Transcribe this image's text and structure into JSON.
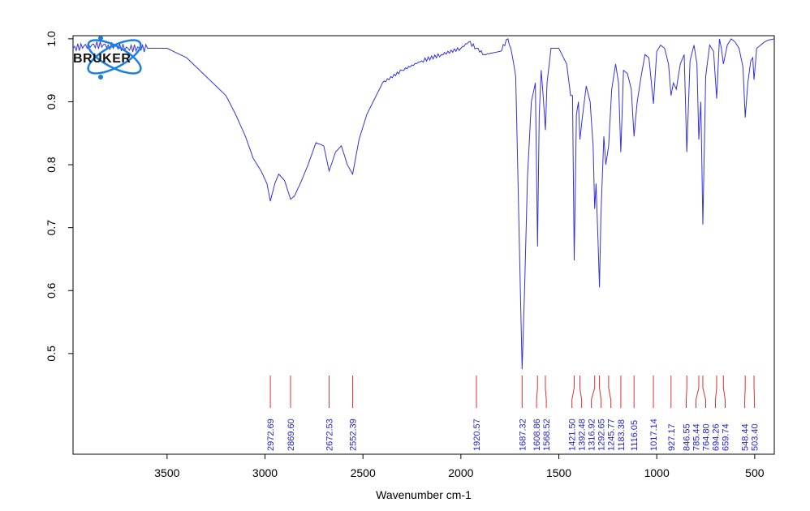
{
  "chart_data": {
    "type": "line",
    "xlabel": "Wavenumber cm-1",
    "ylabel": "",
    "xlim": [
      3980,
      400
    ],
    "ylim": [
      0.34,
      1.005
    ],
    "x_reversed": true,
    "x_ticks": [
      3500,
      3000,
      2500,
      2000,
      1500,
      1000,
      500
    ],
    "y_ticks": [
      0.5,
      0.6,
      0.7,
      0.8,
      0.9,
      1.0
    ],
    "y_tick_labels": [
      "0.5",
      "0.6",
      "0.7",
      "0.8",
      "0.9",
      "1.0"
    ],
    "series": [
      {
        "color": "#3333dd",
        "x": [
          3980,
          3900,
          3800,
          3700,
          3600,
          3500,
          3400,
          3300,
          3200,
          3150,
          3100,
          3060,
          3020,
          2990,
          2972.69,
          2950,
          2930,
          2900,
          2869.6,
          2850,
          2820,
          2780,
          2740,
          2700,
          2672.53,
          2640,
          2610,
          2580,
          2552.39,
          2520,
          2480,
          2400,
          2300,
          2200,
          2100,
          2000,
          1960,
          1920.57,
          1880,
          1800,
          1760,
          1745,
          1730,
          1720,
          1710,
          1700,
          1687.32,
          1675,
          1660,
          1640,
          1620,
          1608.86,
          1600,
          1590,
          1580,
          1568.52,
          1560,
          1540,
          1500,
          1460,
          1440,
          1430,
          1421.5,
          1410,
          1400,
          1392.48,
          1380,
          1360,
          1340,
          1325,
          1316.92,
          1310,
          1300,
          1292.65,
          1285,
          1270,
          1260,
          1245.77,
          1230,
          1210,
          1195,
          1183.38,
          1170,
          1150,
          1130,
          1116.05,
          1100,
          1080,
          1060,
          1040,
          1017.14,
          1000,
          980,
          960,
          940,
          927.17,
          915,
          900,
          880,
          860,
          846.55,
          830,
          810,
          795,
          785.44,
          775,
          764.8,
          750,
          730,
          710,
          694.26,
          680,
          670,
          659.74,
          640,
          620,
          600,
          580,
          560,
          548.44,
          535,
          520,
          510,
          503.4,
          490,
          470,
          450,
          430,
          400
        ],
        "y": [
          0.985,
          0.99,
          0.99,
          0.985,
          0.985,
          0.985,
          0.97,
          0.94,
          0.91,
          0.88,
          0.845,
          0.81,
          0.79,
          0.77,
          0.742,
          0.77,
          0.785,
          0.775,
          0.745,
          0.75,
          0.77,
          0.8,
          0.835,
          0.83,
          0.79,
          0.82,
          0.83,
          0.8,
          0.785,
          0.84,
          0.88,
          0.93,
          0.95,
          0.965,
          0.975,
          0.985,
          0.995,
          0.985,
          0.975,
          0.98,
          1.0,
          0.985,
          0.96,
          0.94,
          0.8,
          0.65,
          0.475,
          0.6,
          0.78,
          0.9,
          0.93,
          0.67,
          0.88,
          0.95,
          0.91,
          0.855,
          0.93,
          0.985,
          0.985,
          0.96,
          0.91,
          0.91,
          0.648,
          0.88,
          0.9,
          0.84,
          0.875,
          0.925,
          0.9,
          0.83,
          0.73,
          0.77,
          0.68,
          0.605,
          0.72,
          0.845,
          0.8,
          0.83,
          0.92,
          0.96,
          0.93,
          0.82,
          0.95,
          0.945,
          0.92,
          0.845,
          0.9,
          0.94,
          0.975,
          0.97,
          0.897,
          0.98,
          0.99,
          0.985,
          0.96,
          0.91,
          0.93,
          0.92,
          0.96,
          0.975,
          0.82,
          0.965,
          0.99,
          0.96,
          0.84,
          0.9,
          0.705,
          0.94,
          0.99,
          0.98,
          0.905,
          1.0,
          0.985,
          0.96,
          0.99,
          1.0,
          0.995,
          0.985,
          0.955,
          0.875,
          0.93,
          0.965,
          0.97,
          0.935,
          0.985,
          0.99,
          0.995,
          0.998,
          1.0
        ]
      }
    ],
    "peaks": [
      "2972.69",
      "2869.60",
      "2672.53",
      "2552.39",
      "1920.57",
      "1687.32",
      "1608.86",
      "1568.52",
      "1421.50",
      "1392.48",
      "1316.92",
      "1292.65",
      "1245.77",
      "1183.38",
      "1116.05",
      "1017.14",
      "927.17",
      "846.55",
      "785.44",
      "764.80",
      "694.26",
      "659.74",
      "548.44",
      "503.40"
    ],
    "peak_label_color": "#2222cc",
    "peak_line_color": "#e03030"
  },
  "logo": {
    "text": "BRUKER",
    "icon": "atom-orbit-icon",
    "color": "#1a7fe0"
  }
}
